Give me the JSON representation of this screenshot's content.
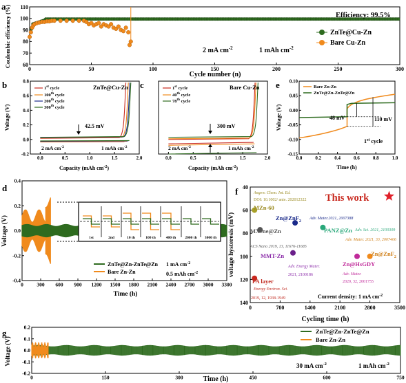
{
  "panels": {
    "a": {
      "letter": "a",
      "efficiency": "Efficiency: 99.5%",
      "legend": [
        "ZnTe@Cu-Zn",
        "Bare Cu-Zn"
      ],
      "cond1": "2 mA cm",
      "cond2": "1 mAh cm",
      "xlabel": "Cycle number (n)",
      "ylabel": "Coulombic efficiency (%)",
      "xticks": [
        "0",
        "50",
        "100",
        "150",
        "200",
        "250",
        "300"
      ],
      "yticks": [
        "60",
        "65",
        "70",
        "75",
        "80",
        "85",
        "90",
        "95",
        "100",
        "105",
        "110"
      ]
    },
    "b": {
      "letter": "b",
      "title": "ZnTe@Cu-Zn",
      "cycles": [
        "1st cycle",
        "100th cycle",
        "200th cycle",
        "300th cycle"
      ],
      "mv": "42.5 mV",
      "cond1": "2 mA cm",
      "cond2": "1 mAh cm",
      "xlabel": "Capacity (mAh cm",
      "ylabel": "Voltage (V)",
      "xticks": [
        "0.0",
        "0.5",
        "1.0",
        "1.5",
        "2.0"
      ],
      "yticks": [
        "-0.2",
        "0.0",
        "0.2",
        "0.4",
        "0.6",
        "0.8"
      ]
    },
    "c": {
      "letter": "c",
      "title": "Bare Cu-Zn",
      "cycles": [
        "1st cycle",
        "40th cycle",
        "78th cycle"
      ],
      "mv": "300 mV",
      "cond1": "2 mA cm",
      "cond2": "1 mAh cm",
      "xlabel": "Capacity (mAh cm",
      "xticks": [
        "0.0",
        "0.5",
        "1.0",
        "1.5",
        "2.0"
      ]
    },
    "e": {
      "letter": "e",
      "legend": [
        "Bare Zn-Zn",
        "ZnTe@Zn-ZnTe@Zn"
      ],
      "mv1": "48 mV",
      "mv2": "110 mV",
      "cycle": "1st cycle",
      "xlabel": "Time (h)",
      "ylabel": "Voltage (V)",
      "xticks": [
        "0.0",
        "0.2",
        "0.4",
        "0.6",
        "0.8",
        "1.0"
      ],
      "yticks": [
        "-0.15",
        "-0.10",
        "-0.05",
        "0.00",
        "0.05",
        "0.10"
      ]
    },
    "d": {
      "letter": "d",
      "legend": [
        "ZnTe@Zn-ZnTe@Zn",
        "Bare Zn-Zn"
      ],
      "cond1": "1 mA cm",
      "cond2": "0.5 mAh cm",
      "inset_labels": [
        "1st",
        "2nd",
        "10 th",
        "100 th",
        "400 th",
        "2000 th",
        "3000 th"
      ],
      "xlabel": "Time (h)",
      "ylabel": "Voltage (V)",
      "xticks": [
        "0",
        "300",
        "600",
        "900",
        "1200",
        "1500",
        "1800",
        "2100",
        "2400",
        "2700",
        "3000",
        "3300"
      ],
      "yticks": [
        "-0.4",
        "-0.2",
        "0.0",
        "0.2",
        "0.4"
      ]
    },
    "f": {
      "letter": "f",
      "this_work": "This work",
      "current": "Current density: 1 mA cm",
      "xlabel": "Cycling time (h)",
      "ylabel": "voltage hysteresis (mV)",
      "xticks": [
        "0",
        "700",
        "1400",
        "2100",
        "2800",
        "3500"
      ],
      "yticks": [
        "40",
        "60",
        "80",
        "100",
        "120",
        "140"
      ],
      "annotations": [
        {
          "name": "MZn-60",
          "ref1": "Angew. Chem. Int. Ed.",
          "ref2": "DOI: 10.1002/ anie. 202012322"
        },
        {
          "name": "Zn@ZnF",
          "ref1": "Adv. Mater.2021, 2007388"
        },
        {
          "name": "MXene@Zn",
          "ref1": "ACS Nano 2019, 13, 11676-11685"
        },
        {
          "name": "PANZ@Zn",
          "ref1": "Adv. Sci. 2021, 2100309",
          "ref2": "Adv. Mater. 2021, 33, 2007406"
        },
        {
          "name": "Zn@ZnF",
          "ref1": ""
        },
        {
          "name": "MMT-Zn",
          "ref1": "Adv. Energy Mater.",
          "ref2": "2021, 2100186"
        },
        {
          "name": "Zn@HsGDY",
          "ref1": "Adv. Mater.",
          "ref2": "2020, 32, 2001755"
        },
        {
          "name": "PA layer",
          "ref1": "Energy Environ. Sci.",
          "ref2": "2019, 12, 1938-1949"
        }
      ]
    },
    "g": {
      "letter": "g",
      "legend": [
        "ZnTe@Zn-ZnTe@Zn",
        "Bare Zn-Zn"
      ],
      "cond1": "30 mA cm",
      "cond2": "1 mAh cm",
      "xlabel": "Time (h)",
      "ylabel": "Voltage (V)",
      "xticks": [
        "0",
        "150",
        "300",
        "450",
        "600",
        "750"
      ],
      "yticks": [
        "-0.2",
        "-0.1",
        "0.0",
        "0.1",
        "0.2"
      ]
    }
  },
  "colors": {
    "green": "#2e6b1f",
    "orange": "#f08a1c",
    "red": "#c8281e",
    "purple": "#6a1f8a",
    "navy": "#1a2a8a",
    "pink": "#d04a9a",
    "olive": "#a8a028",
    "grey": "#555555",
    "teal": "#2aa87a",
    "magenta": "#c02a9a",
    "annot_olive": "#9a8a20",
    "annot_orange": "#d0801a",
    "annot_purple": "#8a2aa8",
    "annot_red": "#c0281e"
  },
  "chart_data": [
    {
      "type": "scatter",
      "panel": "a",
      "x": [
        0,
        2,
        5,
        10,
        20,
        30,
        40,
        45,
        50,
        55,
        60,
        65,
        70,
        75,
        78,
        80,
        82,
        100,
        150,
        200,
        250,
        300
      ],
      "series": [
        {
          "name": "ZnTe@Cu-Zn",
          "values": [
            83,
            95,
            97,
            98,
            99,
            99.2,
            99.4,
            99.5,
            99.5,
            99.5,
            99.5,
            99.5,
            99.5,
            99.5,
            99.5,
            99.5,
            99.5,
            99.5,
            99.5,
            99.5,
            99.5,
            99.5
          ]
        },
        {
          "name": "Bare Cu-Zn",
          "values": [
            84,
            93,
            96,
            97,
            98,
            98,
            98,
            98,
            96,
            95,
            96,
            94,
            93,
            92,
            88,
            77,
            75,
            null,
            null,
            null,
            null,
            null
          ]
        }
      ],
      "xlim": [
        0,
        300
      ],
      "ylim": [
        60,
        110
      ]
    },
    {
      "type": "line",
      "panel": "b",
      "ylim": [
        -0.2,
        0.8
      ],
      "xlim": [
        -0.2,
        2.0
      ]
    },
    {
      "type": "line",
      "panel": "c",
      "ylim": [
        -0.2,
        0.8
      ],
      "xlim": [
        -0.2,
        2.0
      ]
    },
    {
      "type": "line",
      "panel": "e",
      "xlim": [
        0,
        1.0
      ],
      "ylim": [
        -0.15,
        0.1
      ]
    },
    {
      "type": "line",
      "panel": "d",
      "xlim": [
        0,
        3300
      ],
      "ylim": [
        -0.4,
        0.4
      ]
    },
    {
      "type": "scatter",
      "panel": "f",
      "xlim": [
        0,
        3500
      ],
      "ylim": [
        40,
        140
      ],
      "points": [
        {
          "label": "MZn-60",
          "x": 100,
          "y": 60
        },
        {
          "label": "Zn@ZnF",
          "x": 1050,
          "y": 71
        },
        {
          "label": "MXene@Zn",
          "x": 230,
          "y": 77
        },
        {
          "label": "PANZ@Zn",
          "x": 1700,
          "y": 75
        },
        {
          "label": "Zn@ZnF",
          "x": 2800,
          "y": 100
        },
        {
          "label": "MMT-Zn",
          "x": 1000,
          "y": 97
        },
        {
          "label": "Zn@HsGDY",
          "x": 2500,
          "y": 100
        },
        {
          "label": "PA layer",
          "x": 100,
          "y": 119
        },
        {
          "label": "This work",
          "x": 3250,
          "y": 48
        }
      ]
    },
    {
      "type": "line",
      "panel": "g",
      "xlim": [
        0,
        750
      ],
      "ylim": [
        -0.2,
        0.2
      ]
    }
  ]
}
